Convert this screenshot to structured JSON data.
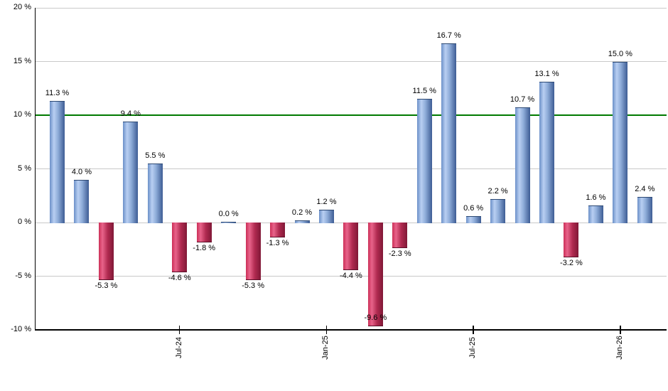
{
  "chart_data": {
    "type": "bar",
    "title": "",
    "xlabel": "",
    "ylabel": "",
    "ylim": [
      -10,
      20
    ],
    "grid": true,
    "legend": "none",
    "bar_count": 25,
    "values": [
      11.3,
      4.0,
      -5.3,
      9.4,
      5.5,
      -4.6,
      -1.8,
      0.0,
      -5.3,
      -1.3,
      0.2,
      1.2,
      -4.4,
      -9.6,
      -2.3,
      11.5,
      16.7,
      0.6,
      2.2,
      10.7,
      13.1,
      -3.2,
      1.6,
      15.0,
      2.4
    ],
    "bar_labels": [
      "11.3 %",
      "4.0 %",
      "-5.3 %",
      "9.4 %",
      "5.5 %",
      "-4.6 %",
      "-1.8 %",
      "0.0 %",
      "-5.3 %",
      "-1.3 %",
      "0.2 %",
      "1.2 %",
      "-4.4 %",
      "-9.6 %",
      "-2.3 %",
      "11.5 %",
      "16.7 %",
      "0.6 %",
      "2.2 %",
      "10.7 %",
      "13.1 %",
      "-3.2 %",
      "1.6 %",
      "15.0 %",
      "2.4 %"
    ],
    "x_ticks": [
      {
        "index": 5,
        "label": "Jul-24"
      },
      {
        "index": 11,
        "label": "Jan-25"
      },
      {
        "index": 17,
        "label": "Jul-25"
      },
      {
        "index": 23,
        "label": "Jan-26"
      }
    ],
    "y_ticks": [
      {
        "value": 20,
        "label": "20 %"
      },
      {
        "value": 15,
        "label": "15 %"
      },
      {
        "value": 10,
        "label": "10 %"
      },
      {
        "value": 5,
        "label": "5 %"
      },
      {
        "value": 0,
        "label": "0 %"
      },
      {
        "value": -5,
        "label": "-5 %"
      },
      {
        "value": -10,
        "label": "-10 %"
      }
    ],
    "reference_line": {
      "value": 10,
      "color": "#007a00"
    },
    "colors": {
      "positive_bar_edge_left": "#6b90c8",
      "positive_bar_highlight": "#b9cff2",
      "positive_bar_edge_right": "#3d5c94",
      "negative_bar_edge_left": "#cc3058",
      "negative_bar_highlight": "#e8638a",
      "negative_bar_edge_right": "#801836",
      "grid": "#c9c9c9",
      "axis": "#000000",
      "label_text": "#000000",
      "background": "#ffffff"
    }
  }
}
